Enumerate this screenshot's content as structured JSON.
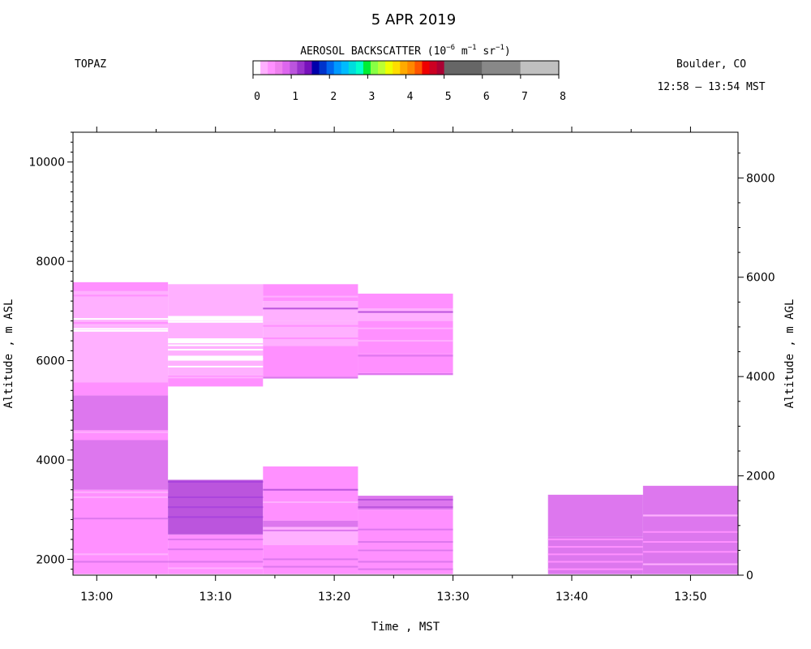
{
  "header": {
    "title": "5 APR 2019",
    "instrument": "TOPAZ",
    "location": "Boulder, CO",
    "time_range": "12:58 – 13:54 MST",
    "colorbar_title_prefix": "AEROSOL BACKSCATTER (10",
    "colorbar_exp1": "−6",
    "colorbar_unit_m": " m",
    "colorbar_exp2": "−1",
    "colorbar_unit_sr": " sr",
    "colorbar_exp3": "−1",
    "colorbar_close": ")"
  },
  "colors": {
    "colorbar": [
      "#ffffff",
      "#ffb0ff",
      "#ff90ff",
      "#ee80ee",
      "#dd66ee",
      "#bb55dd",
      "#9933cc",
      "#7711bb",
      "#0000aa",
      "#0033cc",
      "#0066ee",
      "#0099ff",
      "#00bbff",
      "#00dddd",
      "#00ffcc",
      "#00ee33",
      "#88ff44",
      "#bbff33",
      "#eeff00",
      "#ffdd00",
      "#ffaa00",
      "#ff8800",
      "#ff5500",
      "#ee0000",
      "#cc0022",
      "#aa0033",
      "#666666",
      "#888888",
      "#c0c0c0"
    ],
    "wide_segments": [
      [
        "#666666",
        5,
        6
      ],
      [
        "#888888",
        6,
        7
      ],
      [
        "#c0c0c0",
        7,
        8
      ]
    ],
    "levels": {
      "L": "#ffb0ff",
      "M": "#ff90ff",
      "P": "#dd77ee",
      "D": "#bb55dd"
    }
  },
  "chart_data": {
    "type": "heatmap",
    "colorbar_ticks": [
      "0",
      "1",
      "2",
      "3",
      "4",
      "5",
      "6",
      "7",
      "8"
    ],
    "colorbar_range": [
      0,
      8
    ],
    "xlabel": "Time , MST",
    "ylabel_left": "Altitude , m ASL",
    "ylabel_right": "Altitude , m AGL",
    "x_ticks": [
      "13:00",
      "13:10",
      "13:20",
      "13:30",
      "13:40",
      "13:50"
    ],
    "x_tick_minutes": [
      0,
      10,
      20,
      30,
      40,
      50
    ],
    "x_range_minutes": [
      -2,
      54
    ],
    "y_left_ticks": [
      "2000",
      "4000",
      "6000",
      "8000",
      "10000"
    ],
    "y_left_values": [
      2000,
      4000,
      6000,
      8000,
      10000
    ],
    "y_left_range": [
      1680,
      10600
    ],
    "y_right_ticks": [
      "0",
      "2000",
      "4000",
      "6000",
      "8000"
    ],
    "y_right_values": [
      0,
      2000,
      4000,
      6000,
      8000
    ],
    "y_right_offset": 1680,
    "profiles": [
      {
        "t0": -2,
        "t1": 6,
        "segments": [
          [
            1700,
            2120,
            "M"
          ],
          [
            2120,
            2800,
            "M"
          ],
          [
            2800,
            3400,
            "M"
          ],
          [
            3400,
            4400,
            "P"
          ],
          [
            4400,
            4600,
            "M"
          ],
          [
            4600,
            5300,
            "P"
          ],
          [
            5300,
            5560,
            "M"
          ],
          [
            5560,
            6600,
            "L"
          ],
          [
            6600,
            6700,
            "L"
          ],
          [
            6700,
            6800,
            "L"
          ],
          [
            6800,
            7400,
            "L"
          ],
          [
            7400,
            7580,
            "M"
          ]
        ]
      },
      {
        "t0": 6,
        "t1": 14,
        "segments": [
          [
            1700,
            2500,
            "M"
          ],
          [
            2500,
            3600,
            "D"
          ],
          [
            5480,
            5700,
            "M"
          ],
          [
            5700,
            6000,
            "L"
          ],
          [
            6100,
            6350,
            "L"
          ],
          [
            6450,
            6800,
            "L"
          ],
          [
            6900,
            7540,
            "L"
          ]
        ]
      },
      {
        "t0": 14,
        "t1": 22,
        "segments": [
          [
            1700,
            2300,
            "M"
          ],
          [
            2300,
            2650,
            "L"
          ],
          [
            2650,
            2780,
            "P"
          ],
          [
            2780,
            3400,
            "M"
          ],
          [
            3400,
            3870,
            "M"
          ],
          [
            5640,
            5680,
            "P"
          ],
          [
            5680,
            6300,
            "M"
          ],
          [
            6300,
            6800,
            "L"
          ],
          [
            6800,
            7200,
            "L"
          ],
          [
            7200,
            7540,
            "M"
          ]
        ]
      },
      {
        "t0": 22,
        "t1": 30,
        "segments": [
          [
            1700,
            2200,
            "M"
          ],
          [
            2200,
            3000,
            "M"
          ],
          [
            3000,
            3280,
            "P"
          ],
          [
            5710,
            5750,
            "P"
          ],
          [
            5750,
            6150,
            "M"
          ],
          [
            6150,
            6800,
            "M"
          ],
          [
            6800,
            7050,
            "L"
          ],
          [
            7050,
            7350,
            "M"
          ]
        ]
      },
      {
        "t0": 38,
        "t1": 46,
        "segments": [
          [
            1700,
            2450,
            "P"
          ],
          [
            2450,
            3300,
            "P"
          ]
        ]
      },
      {
        "t0": 46,
        "t1": 54,
        "segments": [
          [
            1700,
            2900,
            "P"
          ],
          [
            2900,
            3480,
            "P"
          ]
        ]
      }
    ],
    "streaks": [
      [
        0,
        7310,
        "M"
      ],
      [
        0,
        6840,
        "#ffffff"
      ],
      [
        0,
        6760,
        "M"
      ],
      [
        0,
        6640,
        "#ffffff"
      ],
      [
        0,
        6600,
        "#ffffff"
      ],
      [
        0,
        4560,
        "L"
      ],
      [
        0,
        3350,
        "L"
      ],
      [
        0,
        3250,
        "L"
      ],
      [
        0,
        2820,
        "P"
      ],
      [
        0,
        2100,
        "L"
      ],
      [
        0,
        1950,
        "P"
      ],
      [
        1,
        6780,
        "#ffffff"
      ],
      [
        1,
        6310,
        "#ffffff"
      ],
      [
        1,
        6220,
        "#ffffff"
      ],
      [
        1,
        6040,
        "#ffffff"
      ],
      [
        1,
        5880,
        "#ffffff"
      ],
      [
        1,
        5660,
        "L"
      ],
      [
        1,
        3560,
        "#aa44dd"
      ],
      [
        1,
        3250,
        "#aa44dd"
      ],
      [
        1,
        3050,
        "#aa44dd"
      ],
      [
        1,
        2850,
        "#aa44dd"
      ],
      [
        1,
        2400,
        "P"
      ],
      [
        1,
        2200,
        "P"
      ],
      [
        1,
        1950,
        "P"
      ],
      [
        1,
        1820,
        "L"
      ],
      [
        2,
        7290,
        "L"
      ],
      [
        2,
        7050,
        "D"
      ],
      [
        2,
        6950,
        "L"
      ],
      [
        2,
        6700,
        "M"
      ],
      [
        2,
        6450,
        "M"
      ],
      [
        2,
        3400,
        "D"
      ],
      [
        2,
        3150,
        "L"
      ],
      [
        2,
        2580,
        "P"
      ],
      [
        2,
        2300,
        "L"
      ],
      [
        2,
        2000,
        "P"
      ],
      [
        2,
        1850,
        "P"
      ],
      [
        3,
        6980,
        "D"
      ],
      [
        3,
        6650,
        "L"
      ],
      [
        3,
        6400,
        "L"
      ],
      [
        3,
        6100,
        "P"
      ],
      [
        3,
        3200,
        "D"
      ],
      [
        3,
        3050,
        "D"
      ],
      [
        3,
        2600,
        "P"
      ],
      [
        3,
        2350,
        "P"
      ],
      [
        3,
        2180,
        "P"
      ],
      [
        3,
        1950,
        "P"
      ],
      [
        3,
        1800,
        "P"
      ],
      [
        4,
        2400,
        "M"
      ],
      [
        4,
        2250,
        "M"
      ],
      [
        4,
        2100,
        "M"
      ],
      [
        4,
        1950,
        "M"
      ],
      [
        4,
        1800,
        "M"
      ],
      [
        5,
        2880,
        "L"
      ],
      [
        5,
        2550,
        "M"
      ],
      [
        5,
        2350,
        "M"
      ],
      [
        5,
        2150,
        "M"
      ],
      [
        5,
        1900,
        "L"
      ]
    ]
  }
}
